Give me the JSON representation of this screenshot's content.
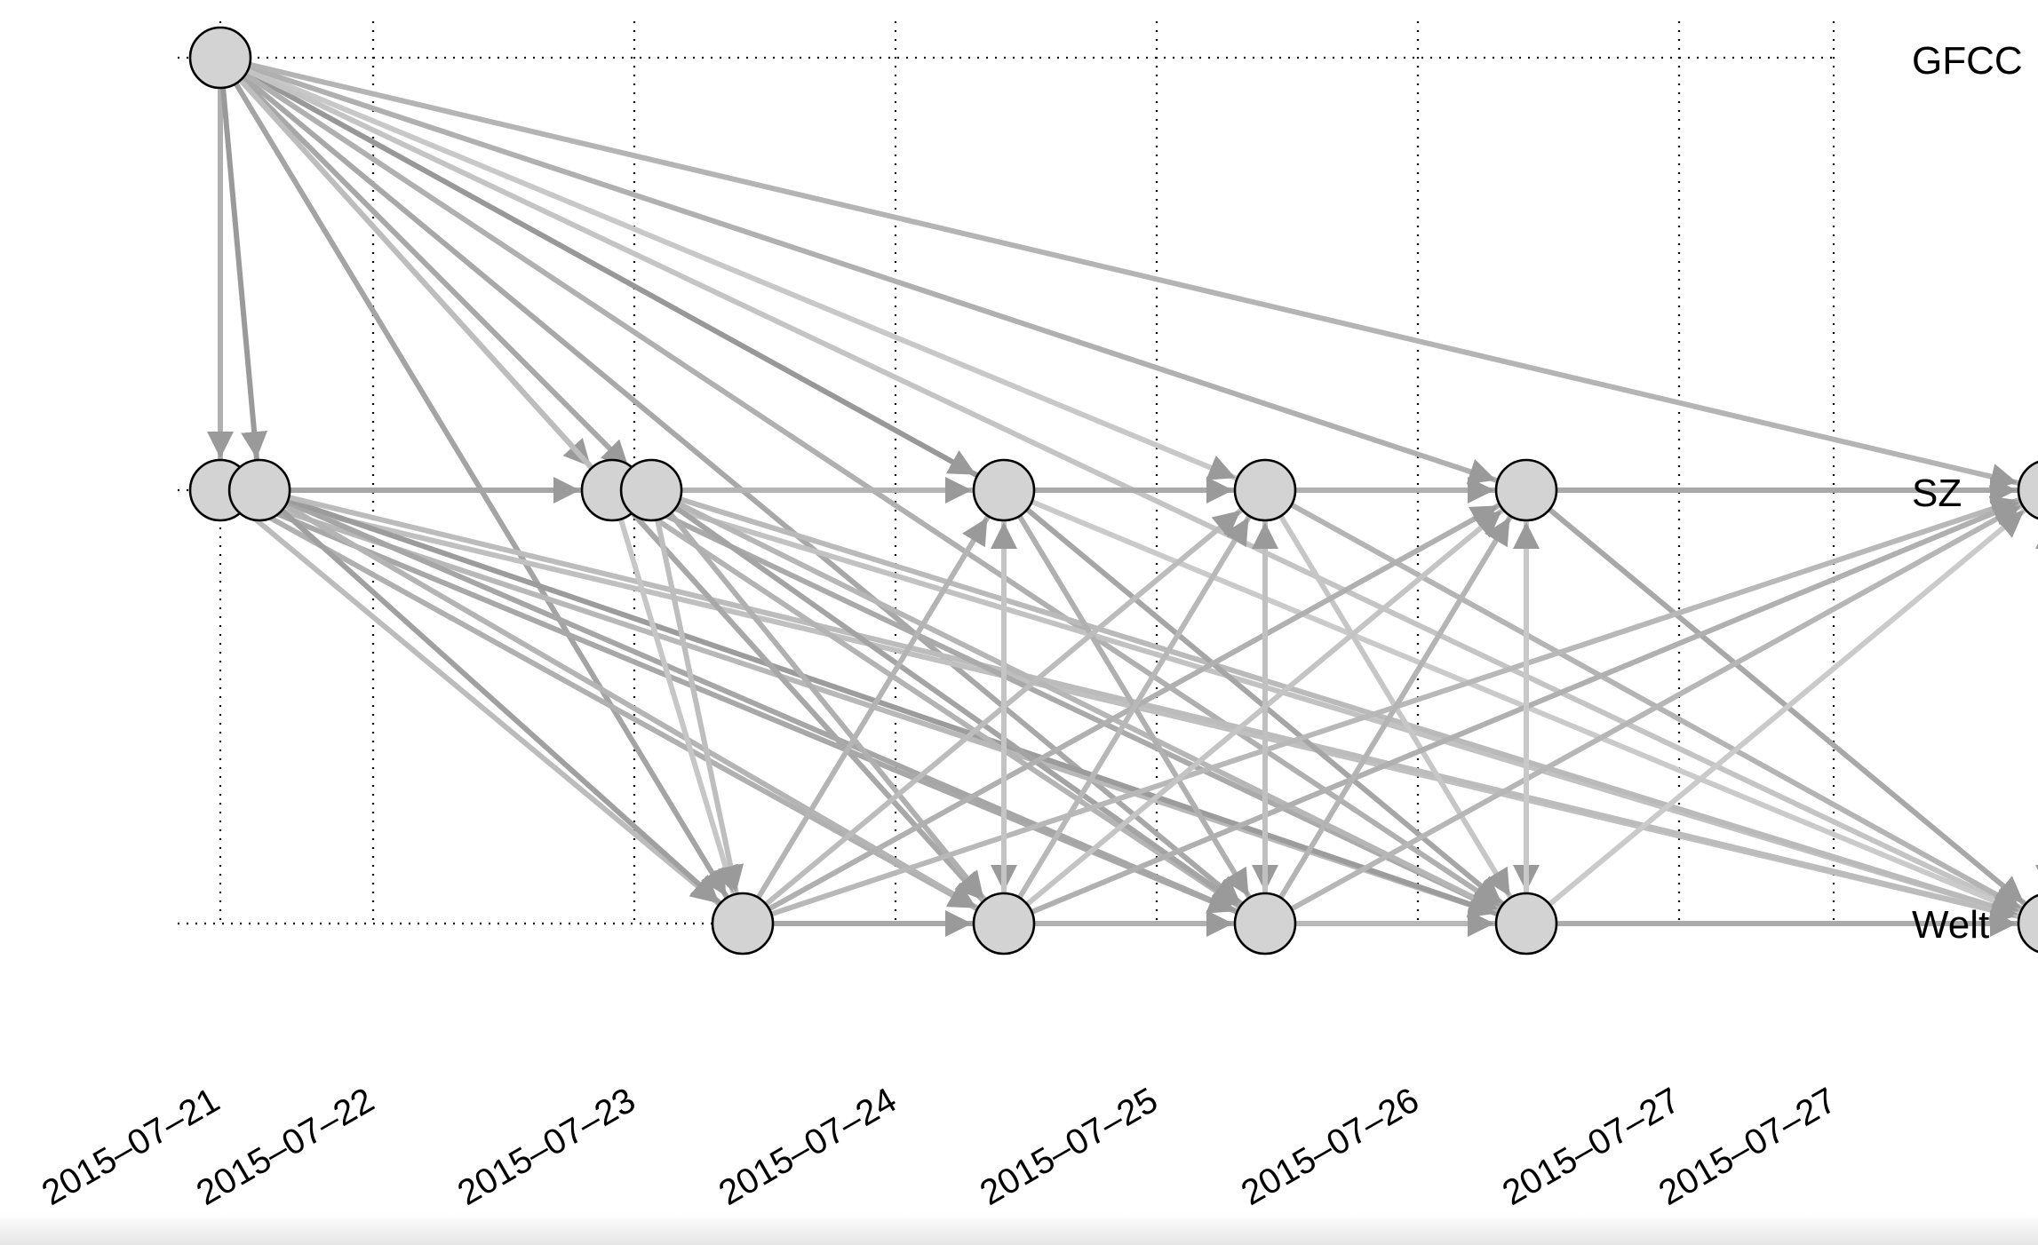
{
  "rows": [
    {
      "id": "gfcc",
      "label": "GFCC"
    },
    {
      "id": "sz",
      "label": "SZ"
    },
    {
      "id": "welt",
      "label": "Welt"
    }
  ],
  "time_labels": [
    "2015–07–21",
    "2015–07–22",
    "2015–07–23",
    "2015–07–24",
    "2015–07–25",
    "2015–07–26",
    "2015–07–27",
    "2015–07–27"
  ],
  "nodes": [
    {
      "id": "G1",
      "row": "gfcc",
      "time": 0
    },
    {
      "id": "S1",
      "row": "sz",
      "time": 0
    },
    {
      "id": "S2",
      "row": "sz",
      "time": 0.15
    },
    {
      "id": "S3",
      "row": "sz",
      "time": 1.5
    },
    {
      "id": "S4",
      "row": "sz",
      "time": 1.65
    },
    {
      "id": "S5",
      "row": "sz",
      "time": 3
    },
    {
      "id": "S6",
      "row": "sz",
      "time": 4
    },
    {
      "id": "S7",
      "row": "sz",
      "time": 5
    },
    {
      "id": "S8",
      "row": "sz",
      "time": 7
    },
    {
      "id": "W1",
      "row": "welt",
      "time": 2
    },
    {
      "id": "W2",
      "row": "welt",
      "time": 3
    },
    {
      "id": "W3",
      "row": "welt",
      "time": 4
    },
    {
      "id": "W4",
      "row": "welt",
      "time": 5
    },
    {
      "id": "W5",
      "row": "welt",
      "time": 7
    }
  ],
  "edges": [
    [
      "G1",
      "S1",
      "#b0b0b0"
    ],
    [
      "G1",
      "S2",
      "#9a9a9a"
    ],
    [
      "G1",
      "S3",
      "#b8b8b8"
    ],
    [
      "G1",
      "S4",
      "#a8a8a8"
    ],
    [
      "G1",
      "S5",
      "#989898"
    ],
    [
      "G1",
      "S6",
      "#c8c8c8"
    ],
    [
      "G1",
      "S7",
      "#b0b0b0"
    ],
    [
      "G1",
      "S8",
      "#b4b4b4"
    ],
    [
      "G1",
      "W1",
      "#a4a4a4"
    ],
    [
      "G1",
      "W2",
      "#bdbdbd"
    ],
    [
      "G1",
      "W3",
      "#a8a8a8"
    ],
    [
      "G1",
      "W4",
      "#b0b0b0"
    ],
    [
      "G1",
      "W5",
      "#c4c4c4"
    ],
    [
      "S1",
      "S2",
      "#b0b0b0"
    ],
    [
      "S2",
      "S3",
      "#a6a6a6"
    ],
    [
      "S3",
      "S4",
      "#b0b0b0"
    ],
    [
      "S4",
      "S5",
      "#b4b4b4"
    ],
    [
      "S5",
      "S6",
      "#aaaaaa"
    ],
    [
      "S6",
      "S7",
      "#b0b0b0"
    ],
    [
      "S7",
      "S8",
      "#a8a8a8"
    ],
    [
      "S1",
      "W1",
      "#bcbcbc"
    ],
    [
      "S1",
      "W2",
      "#b0b0b0"
    ],
    [
      "S1",
      "W3",
      "#a8a8a8"
    ],
    [
      "S1",
      "W4",
      "#b8b8b8"
    ],
    [
      "S1",
      "W5",
      "#c0c0c0"
    ],
    [
      "S2",
      "W1",
      "#a0a0a0"
    ],
    [
      "S2",
      "W2",
      "#b4b4b4"
    ],
    [
      "S2",
      "W3",
      "#a6a6a6"
    ],
    [
      "S2",
      "W4",
      "#9c9c9c"
    ],
    [
      "S2",
      "W5",
      "#bcbcbc"
    ],
    [
      "S3",
      "W1",
      "#c6c6c6"
    ],
    [
      "S3",
      "W2",
      "#a8a8a8"
    ],
    [
      "S3",
      "W3",
      "#b4b4b4"
    ],
    [
      "S3",
      "W4",
      "#aaaaaa"
    ],
    [
      "S3",
      "W5",
      "#c2c2c2"
    ],
    [
      "S4",
      "W1",
      "#bebebe"
    ],
    [
      "S4",
      "W2",
      "#b0b0b0"
    ],
    [
      "S4",
      "W3",
      "#a4a4a4"
    ],
    [
      "S4",
      "W4",
      "#b6b6b6"
    ],
    [
      "S4",
      "W5",
      "#bababa"
    ],
    [
      "S5",
      "W2",
      "#c2c2c2"
    ],
    [
      "S5",
      "W3",
      "#b0b0b0"
    ],
    [
      "S5",
      "W4",
      "#a6a6a6"
    ],
    [
      "S5",
      "W5",
      "#cacaca"
    ],
    [
      "S6",
      "W3",
      "#bcbcbc"
    ],
    [
      "S6",
      "W4",
      "#c6c6c6"
    ],
    [
      "S6",
      "W5",
      "#b4b4b4"
    ],
    [
      "S7",
      "W4",
      "#c8c8c8"
    ],
    [
      "S7",
      "W5",
      "#a8a8a8"
    ],
    [
      "S8",
      "W5",
      "#a6a6a6"
    ],
    [
      "W1",
      "S5",
      "#b4b4b4"
    ],
    [
      "W1",
      "S6",
      "#bcbcbc"
    ],
    [
      "W1",
      "S7",
      "#b0b0b0"
    ],
    [
      "W1",
      "S8",
      "#b8b8b8"
    ],
    [
      "W2",
      "S5",
      "#c4c4c4"
    ],
    [
      "W2",
      "S6",
      "#b8b8b8"
    ],
    [
      "W2",
      "S7",
      "#c4c4c4"
    ],
    [
      "W2",
      "S8",
      "#b0b0b0"
    ],
    [
      "W3",
      "S6",
      "#c0c0c0"
    ],
    [
      "W3",
      "S7",
      "#b4b4b4"
    ],
    [
      "W3",
      "S8",
      "#b6b6b6"
    ],
    [
      "W4",
      "S7",
      "#c8c8c8"
    ],
    [
      "W4",
      "S8",
      "#cacaca"
    ],
    [
      "W5",
      "S8",
      "#bcbcbc"
    ],
    [
      "W1",
      "W2",
      "#a8a8a8"
    ],
    [
      "W2",
      "W3",
      "#b0b0b0"
    ],
    [
      "W3",
      "W4",
      "#b8b8b8"
    ],
    [
      "W4",
      "W5",
      "#ababab"
    ]
  ],
  "colors": {
    "node_fill": "#d3d3d3",
    "node_stroke": "#000000",
    "grid": "#000000"
  }
}
